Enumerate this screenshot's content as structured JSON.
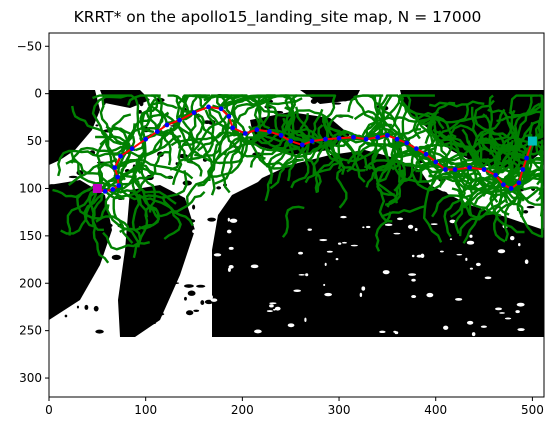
{
  "chart_data": {
    "type": "scatter",
    "title": "KRRT* on the apollo15_landing_site map, N = 17000",
    "xlabel": "",
    "ylabel": "",
    "xlim": [
      0,
      512
    ],
    "ylim": [
      320,
      -64
    ],
    "y_inverted": true,
    "grid": false,
    "x_ticks": [
      "0",
      "100",
      "200",
      "300",
      "400",
      "500"
    ],
    "y_ticks": [
      "−50",
      "0",
      "50",
      "100",
      "150",
      "200",
      "250",
      "300"
    ],
    "map_extent": {
      "x": [
        0,
        512
      ],
      "y": [
        0,
        256
      ]
    },
    "start_point": {
      "x": 50,
      "y": 100,
      "color": "#bf00bf"
    },
    "goal_point": {
      "x": 500,
      "y": 50,
      "color": "#00bfbf"
    },
    "colors": {
      "tree": "#008000",
      "path_points": "#0000ff",
      "path_line": "#ff0000",
      "obstacle": "#000000",
      "free": "#ffffff"
    },
    "path": [
      [
        50,
        100
      ],
      [
        58,
        103
      ],
      [
        66,
        101
      ],
      [
        72,
        97
      ],
      [
        71,
        88
      ],
      [
        68,
        78
      ],
      [
        74,
        66
      ],
      [
        86,
        58
      ],
      [
        100,
        48
      ],
      [
        112,
        40
      ],
      [
        122,
        33
      ],
      [
        135,
        28
      ],
      [
        150,
        20
      ],
      [
        165,
        14
      ],
      [
        178,
        16
      ],
      [
        186,
        24
      ],
      [
        190,
        36
      ],
      [
        203,
        42
      ],
      [
        215,
        38
      ],
      [
        228,
        40
      ],
      [
        240,
        44
      ],
      [
        250,
        50
      ],
      [
        262,
        54
      ],
      [
        272,
        50
      ],
      [
        286,
        48
      ],
      [
        300,
        47
      ],
      [
        315,
        46
      ],
      [
        328,
        48
      ],
      [
        340,
        46
      ],
      [
        350,
        44
      ],
      [
        360,
        48
      ],
      [
        370,
        52
      ],
      [
        380,
        58
      ],
      [
        390,
        64
      ],
      [
        400,
        72
      ],
      [
        410,
        80
      ],
      [
        420,
        80
      ],
      [
        435,
        78
      ],
      [
        450,
        80
      ],
      [
        462,
        86
      ],
      [
        470,
        96
      ],
      [
        478,
        100
      ],
      [
        486,
        94
      ],
      [
        490,
        80
      ],
      [
        494,
        68
      ],
      [
        500,
        50
      ]
    ]
  }
}
